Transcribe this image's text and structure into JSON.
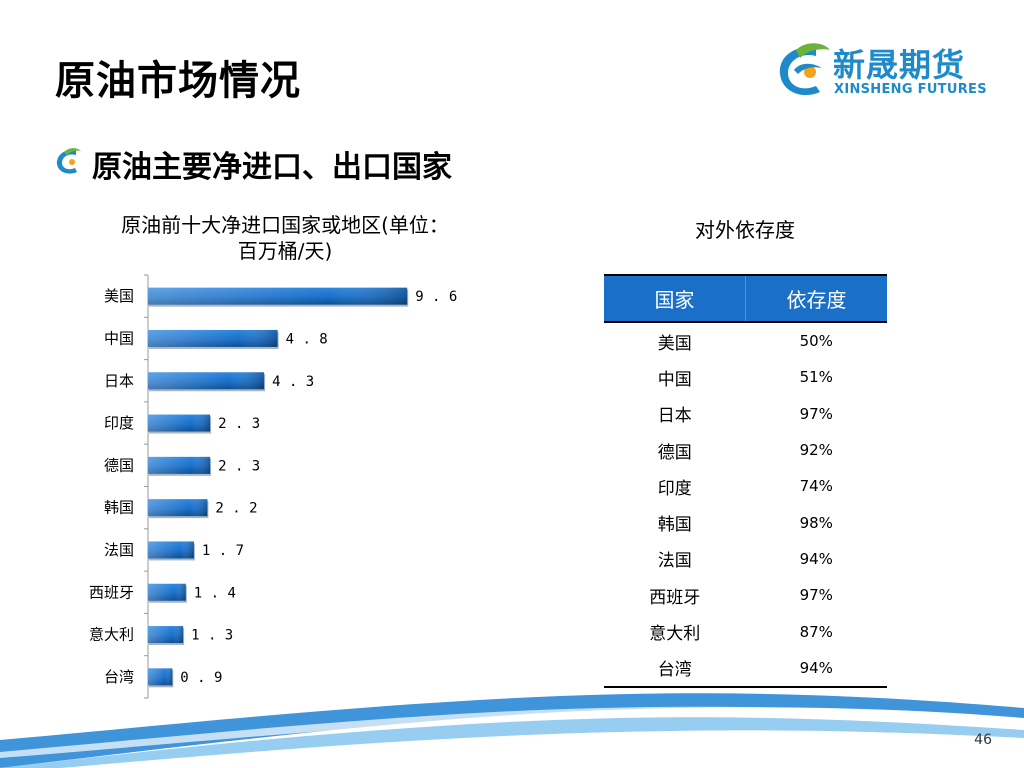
{
  "slide": {
    "title": "原油市场情况",
    "subtitle": "原油主要净进口、出口国家",
    "page_number": "46"
  },
  "logo": {
    "name_cn": "新晟期货",
    "name_en": "XINSHENG FUTURES"
  },
  "colors": {
    "bar": "#1a6fc8",
    "bar_dark": "#0b4f96",
    "table_header": "#1a6fc8",
    "logo_blue": "#1f8ac9",
    "logo_green": "#6ab43e"
  },
  "chart_data": {
    "type": "bar",
    "orientation": "horizontal",
    "title": "原油前十大净进口国家或地区(单位：百万桶/天)",
    "title_line1": "原油前十大净进口国家或地区(单位：",
    "title_line2": "百万桶/天)",
    "categories": [
      "美国",
      "中国",
      "日本",
      "印度",
      "德国",
      "韩国",
      "法国",
      "西班牙",
      "意大利",
      "台湾"
    ],
    "values": [
      9.6,
      4.8,
      4.3,
      2.3,
      2.3,
      2.2,
      1.7,
      1.4,
      1.3,
      0.9
    ],
    "value_labels": [
      "9.6",
      "4.8",
      "4.3",
      "2.3",
      "2.3",
      "2.2",
      "1.7",
      "1.4",
      "1.3",
      "0.9"
    ],
    "xlim": [
      0,
      10
    ],
    "grid": false,
    "legend": "none"
  },
  "dependency_table": {
    "title": "对外依存度",
    "headers": [
      "国家",
      "依存度"
    ],
    "rows": [
      [
        "美国",
        "50%"
      ],
      [
        "中国",
        "51%"
      ],
      [
        "日本",
        "97%"
      ],
      [
        "德国",
        "92%"
      ],
      [
        "印度",
        "74%"
      ],
      [
        "韩国",
        "98%"
      ],
      [
        "法国",
        "94%"
      ],
      [
        "西班牙",
        "97%"
      ],
      [
        "意大利",
        "87%"
      ],
      [
        "台湾",
        "94%"
      ]
    ]
  }
}
